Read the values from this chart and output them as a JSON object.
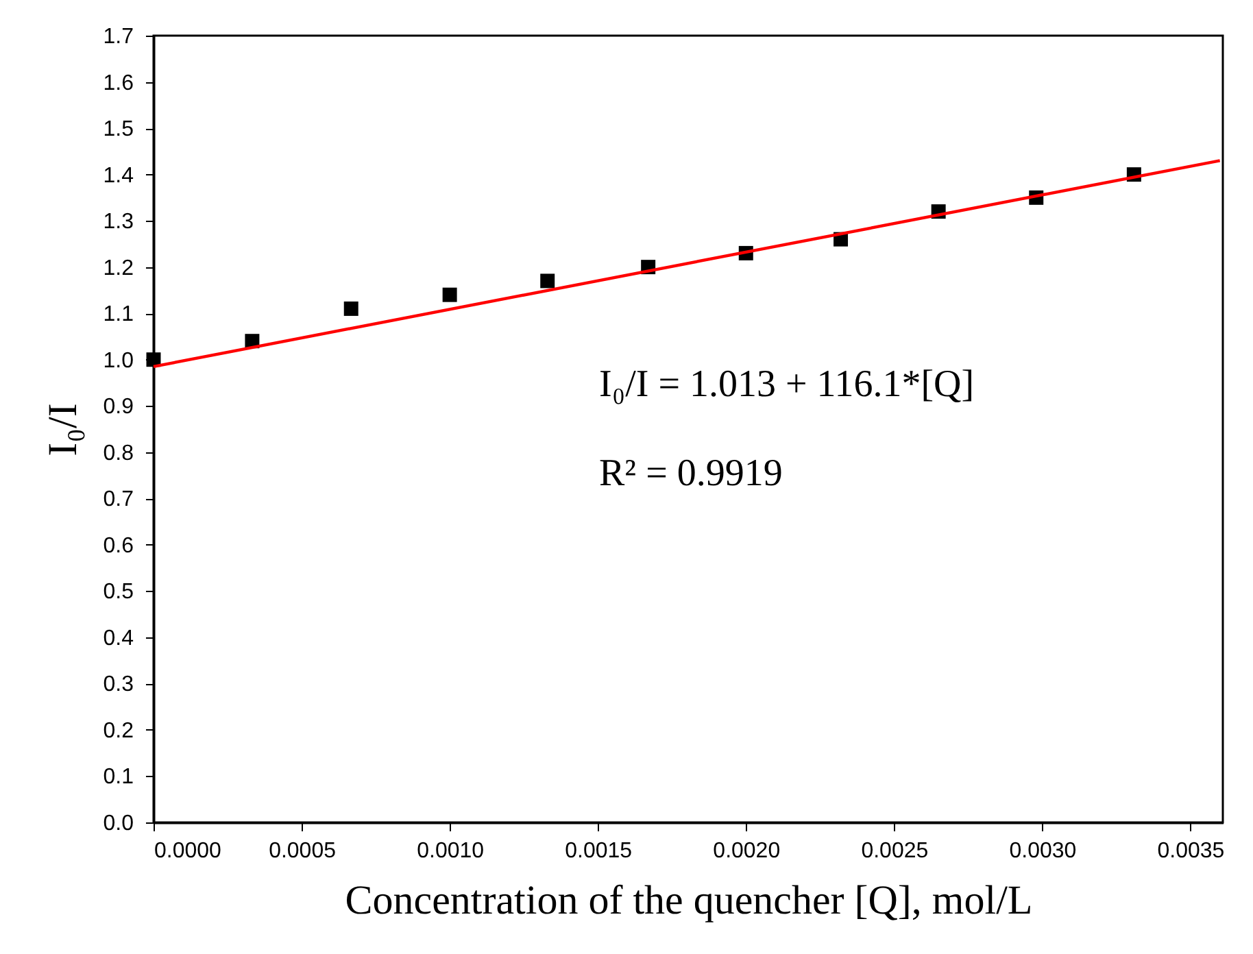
{
  "chart_data": {
    "type": "scatter",
    "xlabel": "Concentration of the quencher [Q], mol/L",
    "ylabel": "I₀/I",
    "x": [
      0,
      0.000333,
      0.000667,
      0.001,
      0.00133,
      0.00167,
      0.002,
      0.00232,
      0.00265,
      0.00298,
      0.00331
    ],
    "series": [
      {
        "color": "#000000",
        "values": [
          1.0,
          1.04,
          1.11,
          1.14,
          1.17,
          1.2,
          1.23,
          1.26,
          1.32,
          1.35,
          1.4
        ],
        "marker": "square"
      },
      {
        "type": "line",
        "color": "#ff0000",
        "x": [
          0,
          0.0036
        ],
        "values": [
          0.985,
          1.43
        ],
        "line_style": "solid",
        "marker": "none"
      }
    ],
    "annotations": [
      "I₀/I = 1.013 + 116.1*[Q]",
      "R² = 0.9919"
    ],
    "xlim": [
      0,
      0.00361
    ],
    "xticks": [
      {
        "value": 0,
        "label": "0.0000"
      },
      {
        "value": 0.0005,
        "label": "0.0005"
      },
      {
        "value": 0.001,
        "label": "0.0010"
      },
      {
        "value": 0.0015,
        "label": "0.0015"
      },
      {
        "value": 0.002,
        "label": "0.0020"
      },
      {
        "value": 0.0025,
        "label": "0.0025"
      },
      {
        "value": 0.003,
        "label": "0.0030"
      },
      {
        "value": 0.0035,
        "label": "0.0035"
      }
    ],
    "ylim": [
      0,
      1.7
    ],
    "yticks": [
      {
        "value": 0,
        "label": "0.0"
      },
      0.1,
      0.2,
      0.3,
      0.4,
      0.5,
      0.6,
      0.7,
      0.8,
      0.9,
      {
        "value": 1,
        "label": "1.0"
      },
      1.1,
      1.2,
      1.3,
      1.4,
      1.5,
      1.6,
      1.7
    ],
    "grid": false,
    "legend": false
  }
}
